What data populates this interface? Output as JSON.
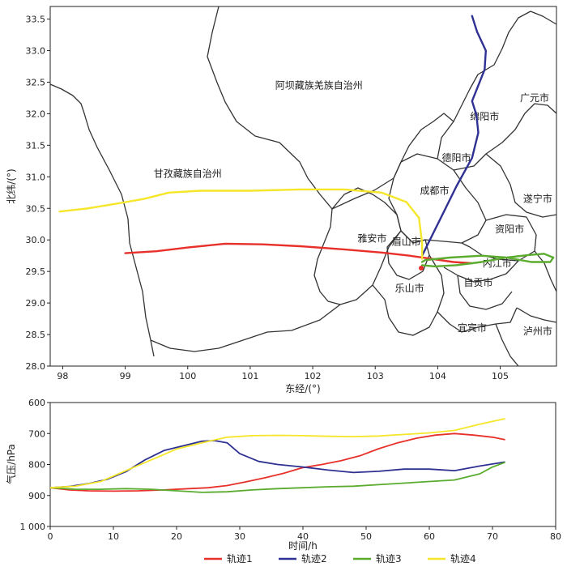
{
  "chart_data": [
    {
      "type": "line",
      "subtype": "map",
      "xlabel": "东经/(°)",
      "ylabel": "北纬/(°)",
      "xlim": [
        97.8,
        105.9
      ],
      "ylim": [
        28.0,
        33.7
      ],
      "x_ticks": [
        "98",
        "99",
        "100",
        "101",
        "102",
        "103",
        "104",
        "105"
      ],
      "y_ticks": [
        "28.0",
        "28.5",
        "29.0",
        "29.5",
        "30.0",
        "30.5",
        "31.0",
        "31.5",
        "32.0",
        "32.5",
        "33.0",
        "33.5"
      ],
      "regions": [
        {
          "name": "阿坝藏族羌族自治州",
          "lon": 102.1,
          "lat": 32.4
        },
        {
          "name": "甘孜藏族自治州",
          "lon": 100.0,
          "lat": 31.0
        },
        {
          "name": "绵阳市",
          "lon": 104.75,
          "lat": 31.9
        },
        {
          "name": "广元市",
          "lon": 105.55,
          "lat": 32.2
        },
        {
          "name": "德阳市",
          "lon": 104.3,
          "lat": 31.25
        },
        {
          "name": "成都市",
          "lon": 103.95,
          "lat": 30.73
        },
        {
          "name": "遂宁市",
          "lon": 105.6,
          "lat": 30.6
        },
        {
          "name": "资阳市",
          "lon": 105.15,
          "lat": 30.12
        },
        {
          "name": "雅安市",
          "lon": 102.95,
          "lat": 29.97
        },
        {
          "name": "眉山市",
          "lon": 103.5,
          "lat": 29.92
        },
        {
          "name": "内江市",
          "lon": 104.95,
          "lat": 29.58
        },
        {
          "name": "自贡市",
          "lon": 104.65,
          "lat": 29.27
        },
        {
          "name": "乐山市",
          "lon": 103.55,
          "lat": 29.18
        },
        {
          "name": "宜宾市",
          "lon": 104.55,
          "lat": 28.55
        },
        {
          "name": "泸州市",
          "lon": 105.6,
          "lat": 28.5
        }
      ],
      "series": [
        {
          "name": "轨迹1",
          "color": "#e8302a",
          "lon": [
            104.55,
            104.25,
            103.9,
            103.55,
            103.1,
            102.5,
            101.8,
            101.2,
            100.6,
            100.0,
            99.5,
            99.0
          ],
          "lat": [
            29.63,
            29.65,
            29.7,
            29.75,
            29.8,
            29.85,
            29.9,
            29.93,
            29.94,
            29.88,
            29.82,
            29.79
          ]
        },
        {
          "name": "轨迹2",
          "color": "#2e3192",
          "lon": [
            103.75,
            103.85,
            104.05,
            104.3,
            104.55,
            104.65,
            104.62,
            104.55,
            104.75,
            104.77,
            104.63,
            104.55
          ],
          "lat": [
            29.75,
            29.95,
            30.35,
            30.85,
            31.3,
            31.7,
            31.98,
            32.2,
            32.7,
            33.0,
            33.3,
            33.55
          ]
        },
        {
          "name": "轨迹3",
          "color": "#5aab2e",
          "lon": [
            103.75,
            103.95,
            104.3,
            104.7,
            105.1,
            105.45,
            105.7,
            105.85,
            105.8,
            105.5,
            105.1,
            104.7,
            104.2,
            103.8,
            103.75
          ],
          "lat": [
            29.6,
            29.58,
            29.6,
            29.65,
            29.72,
            29.76,
            29.78,
            29.72,
            29.65,
            29.65,
            29.72,
            29.75,
            29.72,
            29.68,
            29.65
          ]
        },
        {
          "name": "轨迹4",
          "color": "#f5e62a",
          "lon": [
            103.75,
            103.75,
            103.7,
            103.5,
            103.1,
            102.5,
            101.8,
            101.0,
            100.2,
            99.7,
            99.3,
            98.9,
            98.4,
            97.95
          ],
          "lat": [
            29.7,
            29.95,
            30.35,
            30.6,
            30.75,
            30.8,
            30.8,
            30.78,
            30.78,
            30.75,
            30.65,
            30.58,
            30.5,
            30.45
          ]
        }
      ]
    },
    {
      "type": "line",
      "xlabel": "时间/h",
      "ylabel": "气压/hPa",
      "xlim": [
        0,
        80
      ],
      "ylim": [
        1000,
        600
      ],
      "y_inverted": true,
      "x_ticks": [
        "0",
        "10",
        "20",
        "30",
        "40",
        "50",
        "60",
        "70",
        "80"
      ],
      "y_ticks": [
        "600",
        "700",
        "800",
        "900",
        "1 000"
      ],
      "legend_position": "bottom",
      "series": [
        {
          "name": "轨迹1",
          "color": "#e8302a",
          "x": [
            0,
            3,
            6,
            10,
            14,
            18,
            22,
            25,
            28,
            31,
            34,
            37,
            40,
            43,
            46,
            49,
            52,
            55,
            58,
            61,
            64,
            67,
            70,
            72
          ],
          "y": [
            875,
            882,
            885,
            886,
            885,
            882,
            878,
            875,
            868,
            856,
            843,
            828,
            810,
            800,
            788,
            772,
            749,
            730,
            715,
            705,
            700,
            705,
            712,
            720
          ]
        },
        {
          "name": "轨迹2",
          "color": "#2e3192",
          "x": [
            0,
            3,
            6,
            9,
            12,
            15,
            18,
            21,
            24,
            26,
            28,
            30,
            33,
            36,
            40,
            44,
            48,
            52,
            56,
            60,
            64,
            68,
            72
          ],
          "y": [
            875,
            871,
            862,
            848,
            823,
            785,
            755,
            740,
            725,
            723,
            730,
            765,
            790,
            800,
            808,
            818,
            826,
            822,
            815,
            815,
            820,
            805,
            792
          ]
        },
        {
          "name": "轨迹3",
          "color": "#5aab2e",
          "x": [
            0,
            4,
            8,
            12,
            16,
            20,
            24,
            28,
            32,
            36,
            40,
            44,
            48,
            52,
            56,
            60,
            64,
            68,
            70,
            72
          ],
          "y": [
            875,
            880,
            880,
            878,
            880,
            885,
            890,
            888,
            882,
            878,
            875,
            872,
            870,
            865,
            860,
            855,
            850,
            830,
            808,
            793
          ]
        },
        {
          "name": "轨迹4",
          "color": "#f5e62a",
          "x": [
            0,
            4,
            8,
            12,
            16,
            20,
            24,
            28,
            32,
            36,
            40,
            44,
            48,
            52,
            56,
            60,
            64,
            68,
            72
          ],
          "y": [
            875,
            870,
            855,
            820,
            785,
            750,
            730,
            712,
            707,
            706,
            707,
            709,
            710,
            708,
            703,
            698,
            690,
            670,
            652
          ]
        }
      ]
    }
  ]
}
